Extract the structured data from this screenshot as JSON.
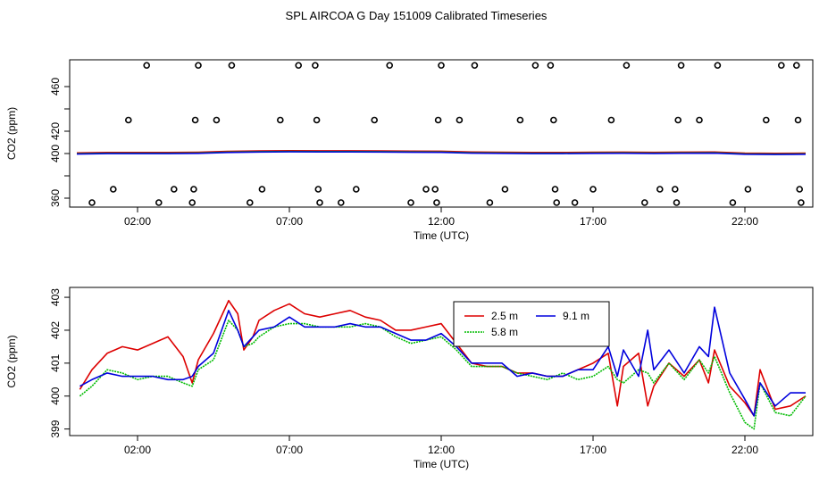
{
  "title": "SPL AIRCOA G  Day 151009  Calibrated Timeseries",
  "colors": {
    "red": "#dd0000",
    "green": "#00bb00",
    "blue": "#0000dd",
    "black": "#000000"
  },
  "chart_data": [
    {
      "type": "scatter",
      "xlabel": "Time (UTC)",
      "ylabel": "CO2 (ppm)",
      "xlim": [
        0,
        24
      ],
      "ylim": [
        352,
        484
      ],
      "x_ticks": [
        2,
        7,
        12,
        17,
        22
      ],
      "x_tick_labels": [
        "02:00",
        "07:00",
        "12:00",
        "17:00",
        "22:00"
      ],
      "y_ticks": [
        360,
        380,
        400,
        420,
        440,
        460
      ],
      "y_tick_labels": [
        "360",
        "",
        "400",
        "420",
        "",
        "460"
      ],
      "grid": false,
      "series": [
        {
          "name": "",
          "points": [
            [
              0.5,
              356
            ],
            [
              1.2,
              368
            ],
            [
              1.7,
              430
            ],
            [
              2.3,
              479
            ],
            [
              2.7,
              356
            ],
            [
              3.2,
              368
            ],
            [
              3.8,
              356
            ],
            [
              3.85,
              368
            ],
            [
              3.9,
              430
            ],
            [
              4.0,
              479
            ],
            [
              4.6,
              430
            ],
            [
              5.1,
              479
            ],
            [
              5.7,
              356
            ],
            [
              6.1,
              368
            ],
            [
              6.7,
              430
            ],
            [
              7.3,
              479
            ],
            [
              7.85,
              479
            ],
            [
              7.9,
              430
            ],
            [
              7.95,
              368
            ],
            [
              8.0,
              356
            ],
            [
              8.7,
              356
            ],
            [
              9.2,
              368
            ],
            [
              9.8,
              430
            ],
            [
              10.3,
              479
            ],
            [
              11.0,
              356
            ],
            [
              11.5,
              368
            ],
            [
              11.8,
              368
            ],
            [
              11.85,
              356
            ],
            [
              11.9,
              430
            ],
            [
              12.0,
              479
            ],
            [
              12.6,
              430
            ],
            [
              13.1,
              479
            ],
            [
              13.6,
              356
            ],
            [
              14.1,
              368
            ],
            [
              14.6,
              430
            ],
            [
              15.1,
              479
            ],
            [
              15.6,
              479
            ],
            [
              15.7,
              430
            ],
            [
              15.75,
              368
            ],
            [
              15.8,
              356
            ],
            [
              16.4,
              356
            ],
            [
              17.0,
              368
            ],
            [
              17.6,
              430
            ],
            [
              18.1,
              479
            ],
            [
              18.7,
              356
            ],
            [
              19.2,
              368
            ],
            [
              19.7,
              368
            ],
            [
              19.75,
              356
            ],
            [
              19.8,
              430
            ],
            [
              19.9,
              479
            ],
            [
              20.5,
              430
            ],
            [
              21.1,
              479
            ],
            [
              21.6,
              356
            ],
            [
              22.1,
              368
            ],
            [
              22.7,
              430
            ],
            [
              23.2,
              479
            ],
            [
              23.7,
              479
            ],
            [
              23.75,
              430
            ],
            [
              23.8,
              368
            ],
            [
              23.85,
              356
            ]
          ]
        },
        {
          "name": "",
          "type": "line",
          "x": [
            0,
            1,
            2,
            3,
            4,
            5,
            6,
            7,
            8,
            9,
            10,
            11,
            12,
            13,
            14,
            15,
            16,
            17,
            18,
            19,
            20,
            21,
            22,
            23,
            24
          ],
          "values": [
            400.2,
            400.6,
            400.6,
            400.6,
            400.8,
            401.6,
            402.0,
            402.2,
            402.1,
            402.1,
            402.0,
            401.8,
            401.7,
            401.0,
            400.8,
            400.6,
            400.6,
            400.8,
            400.9,
            400.7,
            400.9,
            401.0,
            400.0,
            399.8,
            400.0
          ]
        }
      ]
    },
    {
      "type": "line",
      "xlabel": "Time (UTC)",
      "ylabel": "CO2 (ppm)",
      "xlim": [
        0,
        24
      ],
      "ylim": [
        398.8,
        403.3
      ],
      "x_ticks": [
        2,
        7,
        12,
        17,
        22
      ],
      "x_tick_labels": [
        "02:00",
        "07:00",
        "12:00",
        "17:00",
        "22:00"
      ],
      "y_ticks": [
        399,
        400,
        401,
        402,
        403
      ],
      "y_tick_labels": [
        "399",
        "400",
        "401",
        "402",
        "403"
      ],
      "grid": false,
      "legend": "top-right",
      "x": [
        0.1,
        0.5,
        1.0,
        1.5,
        2.0,
        2.5,
        3.0,
        3.5,
        3.8,
        4.0,
        4.5,
        5.0,
        5.3,
        5.5,
        5.8,
        6.0,
        6.5,
        7.0,
        7.5,
        8.0,
        8.5,
        9.0,
        9.5,
        10.0,
        10.5,
        11.0,
        11.5,
        12.0,
        12.5,
        13.0,
        13.5,
        14.0,
        14.5,
        15.0,
        15.5,
        16.0,
        16.5,
        17.0,
        17.5,
        17.8,
        18.0,
        18.5,
        18.8,
        19.0,
        19.5,
        20.0,
        20.5,
        20.8,
        21.0,
        21.5,
        22.0,
        22.3,
        22.5,
        23.0,
        23.5,
        24.0
      ],
      "series": [
        {
          "name": "2.5 m",
          "color": "#dd0000",
          "values": [
            400.2,
            400.8,
            401.3,
            401.5,
            401.4,
            401.6,
            401.8,
            401.2,
            400.4,
            401.1,
            401.9,
            402.9,
            402.5,
            401.4,
            401.8,
            402.3,
            402.6,
            402.8,
            402.5,
            402.4,
            402.5,
            402.6,
            402.4,
            402.3,
            402.0,
            402.0,
            402.1,
            402.2,
            401.6,
            401.0,
            400.9,
            400.9,
            400.7,
            400.7,
            400.6,
            400.6,
            400.8,
            401.0,
            401.3,
            399.7,
            400.9,
            401.3,
            399.7,
            400.3,
            401.0,
            400.6,
            401.1,
            400.4,
            401.4,
            400.3,
            399.8,
            399.4,
            400.8,
            399.6,
            399.7,
            400.0
          ]
        },
        {
          "name": "5.8 m",
          "color": "#00bb00",
          "values": [
            400.0,
            400.3,
            400.8,
            400.7,
            400.5,
            400.6,
            400.6,
            400.4,
            400.3,
            400.8,
            401.1,
            402.3,
            402.0,
            401.5,
            401.6,
            401.8,
            402.1,
            402.2,
            402.2,
            402.1,
            402.1,
            402.1,
            402.2,
            402.1,
            401.8,
            401.6,
            401.7,
            401.8,
            401.4,
            400.9,
            400.9,
            400.9,
            400.7,
            400.6,
            400.5,
            400.7,
            400.5,
            400.6,
            400.9,
            400.5,
            400.4,
            400.8,
            400.7,
            400.4,
            401.0,
            400.5,
            401.1,
            400.7,
            401.2,
            400.1,
            399.2,
            399.0,
            400.4,
            399.5,
            399.4,
            400.0
          ]
        },
        {
          "name": "9.1 m",
          "color": "#0000dd",
          "values": [
            400.3,
            400.5,
            400.7,
            400.6,
            400.6,
            400.6,
            400.5,
            400.5,
            400.6,
            400.9,
            401.3,
            402.6,
            402.0,
            401.5,
            401.8,
            402.0,
            402.1,
            402.4,
            402.1,
            402.1,
            402.1,
            402.2,
            402.1,
            402.1,
            401.9,
            401.7,
            401.7,
            401.9,
            401.5,
            401.0,
            401.0,
            401.0,
            400.6,
            400.7,
            400.6,
            400.6,
            400.8,
            400.8,
            401.5,
            400.6,
            401.4,
            400.6,
            402.0,
            400.8,
            401.4,
            400.7,
            401.5,
            401.2,
            402.7,
            400.7,
            399.9,
            399.4,
            400.4,
            399.7,
            400.1,
            400.1
          ]
        }
      ]
    }
  ]
}
